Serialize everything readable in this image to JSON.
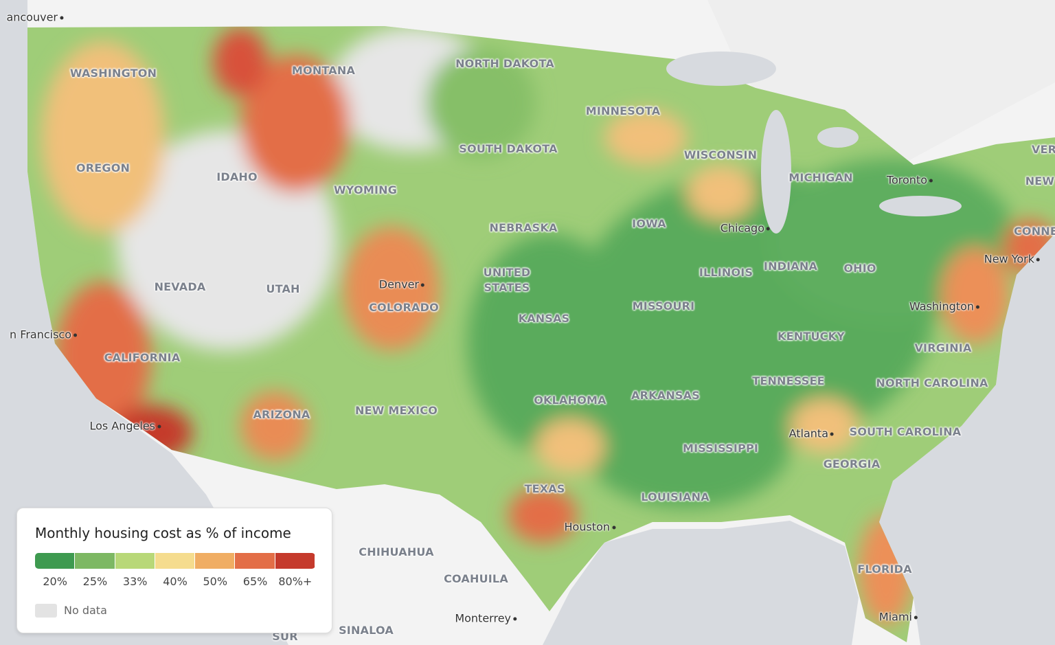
{
  "map": {
    "regions": [
      "WASHINGTON",
      "MONTANA",
      "NORTH DAKOTA",
      "MINNESOTA",
      "OREGON",
      "IDAHO",
      "WYOMING",
      "SOUTH DAKOTA",
      "WISCONSIN",
      "MICHIGAN",
      "NEBRASKA",
      "IOWA",
      "NEVADA",
      "UTAH",
      "COLORADO",
      "UNITED STATES",
      "KANSAS",
      "ILLINOIS",
      "INDIANA",
      "OHIO",
      "MISSOURI",
      "KENTUCKY",
      "VIRGINIA",
      "CALIFORNIA",
      "TENNESSEE",
      "NORTH CAROLINA",
      "OKLAHOMA",
      "ARKANSAS",
      "ARIZONA",
      "NEW MEXICO",
      "SOUTH CAROLINA",
      "MISSISSIPPI",
      "GEORGIA",
      "TEXAS",
      "LOUISIANA",
      "FLORIDA",
      "CHIHUAHUA",
      "COAHUILA",
      "SINALOA",
      "VER",
      "NEW",
      "CONNE",
      "SUR"
    ],
    "cities": [
      "ancouver",
      "Toronto",
      "Chicago",
      "Denver",
      "New York",
      "Washington",
      "n Francisco",
      "Los Angeles",
      "Atlanta",
      "Houston",
      "Monterrey",
      "Miami"
    ]
  },
  "legend": {
    "title": "Monthly housing cost as % of income",
    "items": [
      {
        "label": "20%",
        "color": "#3e9a50"
      },
      {
        "label": "25%",
        "color": "#7db863"
      },
      {
        "label": "33%",
        "color": "#b8d878"
      },
      {
        "label": "40%",
        "color": "#f5dc8e"
      },
      {
        "label": "50%",
        "color": "#f0ad63"
      },
      {
        "label": "65%",
        "color": "#e36e47"
      },
      {
        "label": "80%+",
        "color": "#c53a2c"
      }
    ],
    "no_data": {
      "label": "No data",
      "color": "#e3e3e3"
    }
  }
}
